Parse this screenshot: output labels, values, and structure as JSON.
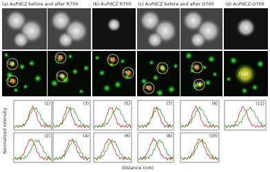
{
  "panels": [
    {
      "title": "(a) AuPdCZ before and after R700"
    },
    {
      "title": "(b) AuPdCZ R700"
    },
    {
      "title": "(c) AuPdCZ before and after O700"
    },
    {
      "title": "(d) AuPdCZ-O700"
    }
  ],
  "image_labels": [
    "(1)",
    "(2)",
    "(3)",
    "(4)",
    "(5)",
    "(6)",
    "(7)",
    "(8)",
    "(9)",
    "(10)",
    "(11)"
  ],
  "profile_labels": [
    "(1)",
    "(2)",
    "(3)",
    "(4)",
    "(5)",
    "(6)",
    "(7)",
    "(8)",
    "(9)",
    "(10)",
    "(11)"
  ],
  "y_axis_label": "Normalized intensity",
  "x_axis_label": "Distance (nm)"
}
